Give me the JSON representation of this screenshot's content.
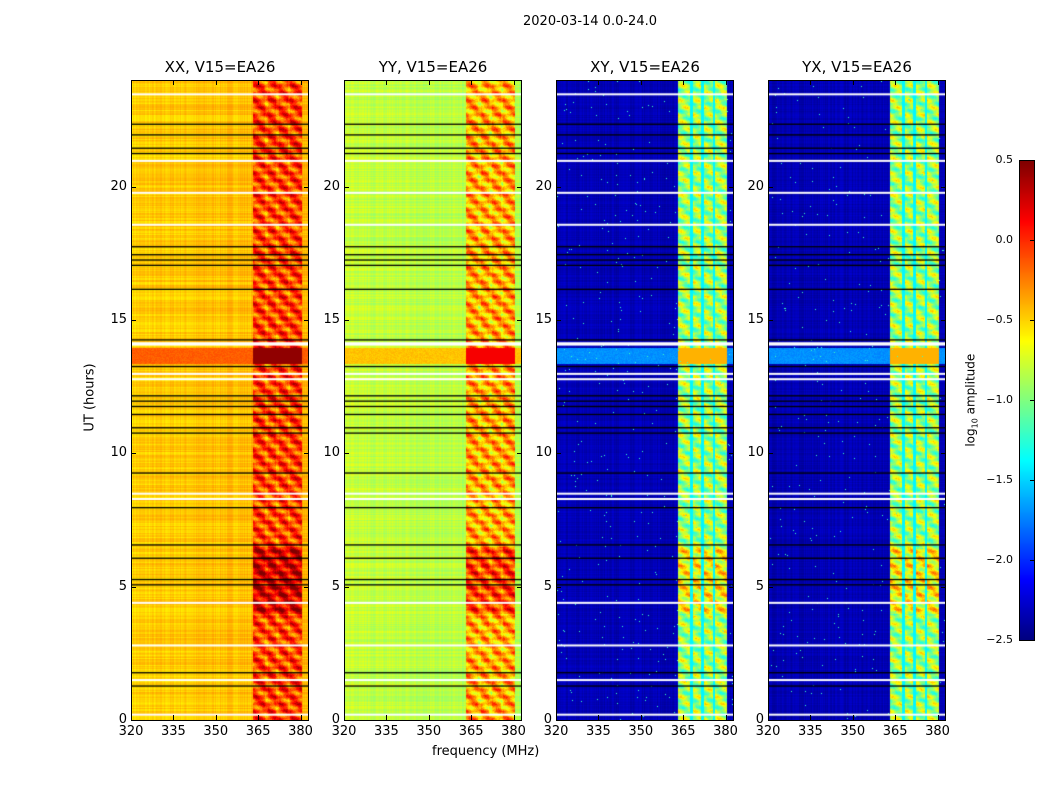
{
  "figure": {
    "suptitle": "2020-03-14 0.0-24.0"
  },
  "chart_data": [
    {
      "type": "heatmap",
      "title": "XX, V15=EA26",
      "xlabel": "",
      "ylabel": "UT (hours)",
      "xlim": [
        320,
        383
      ],
      "ylim": [
        0,
        24
      ],
      "xticks": [
        "320",
        "335",
        "350",
        "365",
        "380"
      ],
      "yticks": [
        "0",
        "5",
        "10",
        "15",
        "20"
      ],
      "background_log_amp": -0.5,
      "rfi_log_amp": -0.05,
      "event_log_amp": -0.15
    },
    {
      "type": "heatmap",
      "title": "YY, V15=EA26",
      "xlabel": "frequency (MHz)",
      "ylabel": "",
      "xlim": [
        320,
        383
      ],
      "ylim": [
        0,
        24
      ],
      "xticks": [
        "320",
        "335",
        "350",
        "365",
        "380"
      ],
      "yticks": [
        "0",
        "5",
        "10",
        "15",
        "20"
      ],
      "background_log_amp": -0.8,
      "rfi_log_amp": -0.35,
      "event_log_amp": -0.45
    },
    {
      "type": "heatmap",
      "title": "XY, V15=EA26",
      "xlabel": "",
      "ylabel": "",
      "xlim": [
        320,
        383
      ],
      "ylim": [
        0,
        24
      ],
      "xticks": [
        "320",
        "335",
        "350",
        "365",
        "380"
      ],
      "yticks": [
        "0",
        "5",
        "10",
        "15",
        "20"
      ],
      "background_log_amp": -2.35,
      "rfi_log_amp": -0.9,
      "event_log_amp": -1.7
    },
    {
      "type": "heatmap",
      "title": "YX, V15=EA26",
      "xlabel": "",
      "ylabel": "",
      "xlim": [
        320,
        383
      ],
      "ylim": [
        0,
        24
      ],
      "xticks": [
        "320",
        "335",
        "350",
        "365",
        "380"
      ],
      "yticks": [
        "0",
        "5",
        "10",
        "15",
        "20"
      ],
      "background_log_amp": -2.35,
      "rfi_log_amp": -0.9,
      "event_log_amp": -1.7
    }
  ],
  "shared": {
    "rfi_band_mhz": [
      363,
      380.5
    ],
    "rfi_gaps_mhz": [
      368,
      372,
      376
    ],
    "event_hours": [
      13.4,
      14.0
    ],
    "flagged_black_hours": [
      22.4,
      22.0,
      21.5,
      21.3,
      17.8,
      17.5,
      17.3,
      17.1,
      16.2,
      14.3,
      13.3,
      12.2,
      12.0,
      11.8,
      11.5,
      11.0,
      10.8,
      9.3,
      8.0,
      6.6,
      6.1,
      5.3,
      5.1,
      1.8,
      1.3
    ],
    "flagged_white_hours": [
      23.5,
      21.0,
      19.8,
      18.6,
      14.15,
      14.1,
      13.0,
      12.8,
      8.5,
      8.3,
      4.4,
      2.8,
      1.5,
      0.2
    ]
  },
  "colorbar": {
    "label": "log10 amplitude",
    "label_main": "log",
    "label_sub": "10",
    "label_rest": " amplitude",
    "range": [
      -2.5,
      0.5
    ],
    "ticks": [
      "0.5",
      "0.0",
      "−0.5",
      "−1.0",
      "−1.5",
      "−2.0",
      "−2.5"
    ],
    "colormap": "jet"
  }
}
